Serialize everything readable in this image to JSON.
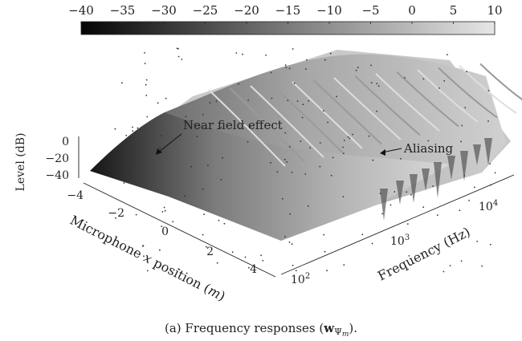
{
  "chart_data": {
    "type": "surface3d",
    "colorbar": {
      "ticks": [
        "−40",
        "−35",
        "−30",
        "−25",
        "−20",
        "−15",
        "−10",
        "−5",
        "0",
        "5",
        "10"
      ],
      "range": [
        -40,
        10
      ],
      "colormap": "gray"
    },
    "z_axis": {
      "label": "Level (dB)",
      "ticks": [
        "0",
        "−20",
        "−40"
      ],
      "range": [
        -40,
        0
      ]
    },
    "x_axis": {
      "label": "Microphone x position (m)",
      "ticks": [
        "−4",
        "−2",
        "0",
        "2",
        "4"
      ],
      "range": [
        -4,
        4
      ]
    },
    "y_axis": {
      "label": "Frequency (Hz)",
      "scale": "log",
      "ticks": [
        "10^2",
        "10^3",
        "10^4"
      ],
      "range": [
        100,
        20000
      ]
    },
    "annotations": [
      "Near field effect",
      "Aliasing"
    ]
  },
  "caption": "(a) Frequency responses ("
}
